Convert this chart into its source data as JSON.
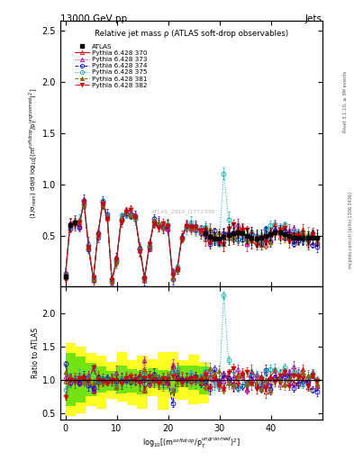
{
  "title_left": "13000 GeV pp",
  "title_right": "Jets",
  "plot_title": "Relative jet mass ρ (ATLAS soft-drop observables)",
  "ylabel_main": "(1/σ$_{resm}$) dσ/d log$_{10}$[(m$^{soft drop}$/p$_T^{ungroomed}$)$^2$]",
  "ylabel_ratio": "Ratio to ATLAS",
  "xlabel": "log$_{10}$[(m$^{soft drop}$/p$_T^{ungroomed}$)$^2$]",
  "rivet_label": "Rivet 3.1.10, ≥ 3M events",
  "arxiv_label": "mcplots.cern.ch [arXiv:1306.3436]",
  "xlim": [
    -1,
    50
  ],
  "ylim_main": [
    0,
    2.6
  ],
  "ylim_ratio": [
    0.4,
    2.4
  ],
  "ratio_yticks": [
    0.5,
    1.0,
    1.5,
    2.0
  ],
  "main_yticks": [
    0.5,
    1.0,
    1.5,
    2.0,
    2.5
  ],
  "background_color": "#ffffff",
  "green_band_color": "#00cc00",
  "yellow_band_color": "#ffff00",
  "series": [
    {
      "label": "ATLAS",
      "color": "#000000",
      "marker": "s",
      "markersize": 3.5,
      "linestyle": "none",
      "linewidth": 1.0,
      "zorder": 10,
      "filled": true
    },
    {
      "label": "Pythia 6.428 370",
      "color": "#cc0000",
      "marker": "^",
      "markersize": 3.5,
      "linestyle": "-",
      "linewidth": 0.7,
      "zorder": 5,
      "filled": false
    },
    {
      "label": "Pythia 6.428 373",
      "color": "#aa00aa",
      "marker": "^",
      "markersize": 3.5,
      "linestyle": ":",
      "linewidth": 0.7,
      "zorder": 5,
      "filled": false
    },
    {
      "label": "Pythia 6.428 374",
      "color": "#0000cc",
      "marker": "o",
      "markersize": 3.5,
      "linestyle": "--",
      "linewidth": 0.7,
      "zorder": 5,
      "filled": false
    },
    {
      "label": "Pythia 6.428 375",
      "color": "#00aaaa",
      "marker": "o",
      "markersize": 3.5,
      "linestyle": ":",
      "linewidth": 0.7,
      "zorder": 5,
      "filled": false
    },
    {
      "label": "Pythia 6.428 381",
      "color": "#886600",
      "marker": "^",
      "markersize": 3.5,
      "linestyle": "--",
      "linewidth": 0.7,
      "zorder": 5,
      "filled": true
    },
    {
      "label": "Pythia 6.428 382",
      "color": "#cc0000",
      "marker": "v",
      "markersize": 3.5,
      "linestyle": "-.",
      "linewidth": 0.7,
      "zorder": 5,
      "filled": true
    }
  ],
  "watermark": "ATLAS_2019_I1772399"
}
